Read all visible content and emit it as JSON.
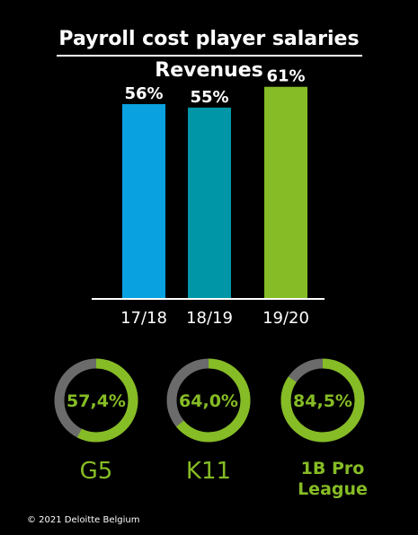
{
  "header": {
    "title_top": "Payroll cost player salaries",
    "title_bottom": "Revenues"
  },
  "chart_data": [
    {
      "type": "bar",
      "categories": [
        "17/18",
        "18/19",
        "19/20"
      ],
      "values": [
        56,
        55,
        61
      ],
      "data_labels": [
        "56%",
        "55%",
        "61%"
      ],
      "colors": [
        "#0aa1e0",
        "#0096a8",
        "#86bc25"
      ],
      "ylim": [
        0,
        70
      ],
      "grid": false
    },
    {
      "type": "pie",
      "style": "donut",
      "items": [
        {
          "league": "G5",
          "value": 57.4,
          "label": "57,4%"
        },
        {
          "league": "K11",
          "value": 64.0,
          "label": "64,0%"
        },
        {
          "league_line1": "1B Pro",
          "league_line2": "League",
          "value": 84.5,
          "label": "84,5%"
        }
      ],
      "colors": {
        "filled": "#86bc25",
        "remainder": "#6b6b6b"
      }
    }
  ],
  "footer": {
    "copyright": "© 2021 Deloitte Belgium"
  },
  "colors": {
    "accent_green": "#86bc25",
    "background": "#000000",
    "text": "#ffffff"
  }
}
